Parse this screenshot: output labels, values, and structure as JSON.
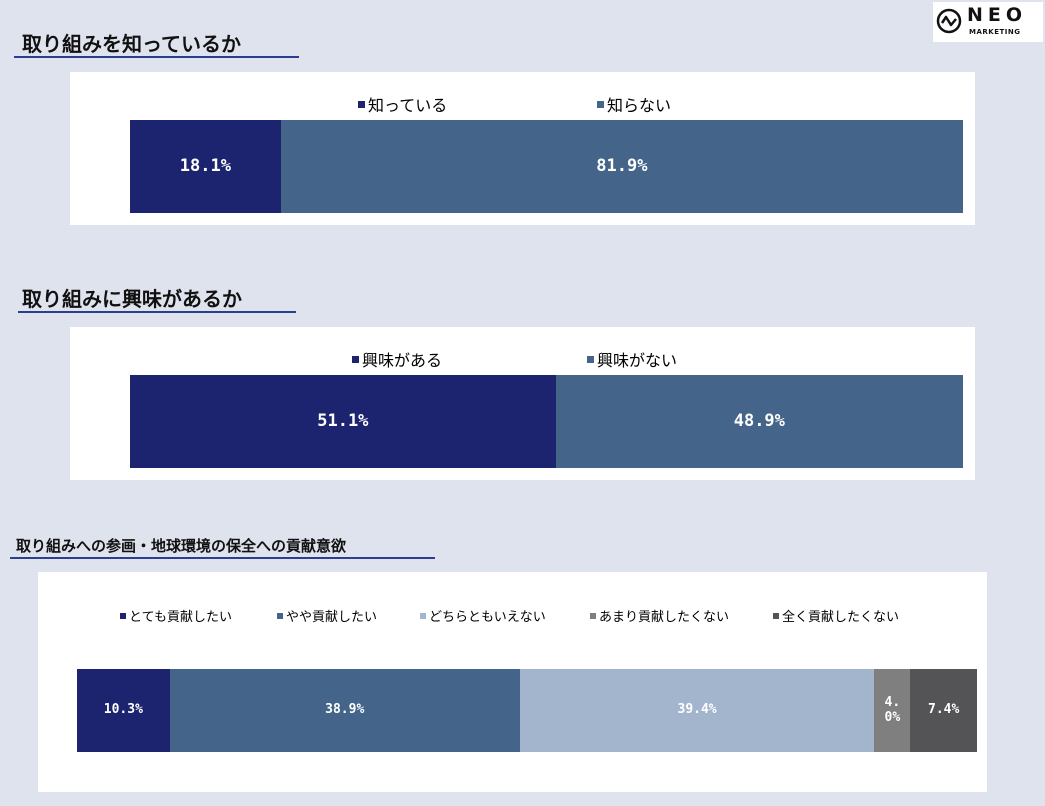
{
  "logo": {
    "text": "NEO",
    "sub": "MARKETING"
  },
  "chart_data": [
    {
      "type": "bar",
      "orientation": "horizontal-stacked-100",
      "title": "取り組みを知っているか",
      "series": [
        {
          "name": "知っている",
          "value": 18.1,
          "label": "18.1%",
          "color": "#1c2470"
        },
        {
          "name": "知らない",
          "value": 81.9,
          "label": "81.9%",
          "color": "#44648a"
        }
      ]
    },
    {
      "type": "bar",
      "orientation": "horizontal-stacked-100",
      "title": "取り組みに興味があるか",
      "series": [
        {
          "name": "興味がある",
          "value": 51.1,
          "label": "51.1%",
          "color": "#1c2470"
        },
        {
          "name": "興味がない",
          "value": 48.9,
          "label": "48.9%",
          "color": "#44648a"
        }
      ]
    },
    {
      "type": "bar",
      "orientation": "horizontal-stacked-100",
      "title": "取り組みへの参画・地球環境の保全への貢献意欲",
      "series": [
        {
          "name": "とても貢献したい",
          "value": 10.3,
          "label": "10.3%",
          "color": "#1c2470"
        },
        {
          "name": "やや貢献したい",
          "value": 38.9,
          "label": "38.9%",
          "color": "#44648a"
        },
        {
          "name": "どちらともいえない",
          "value": 39.4,
          "label": "39.4%",
          "color": "#a3b4cd"
        },
        {
          "name": "あまり貢献したくない",
          "value": 4.0,
          "label": "4.0%",
          "color": "#7f7f7f"
        },
        {
          "name": "全く貢献したくない",
          "value": 7.4,
          "label": "7.4%",
          "color": "#545356"
        }
      ]
    }
  ]
}
